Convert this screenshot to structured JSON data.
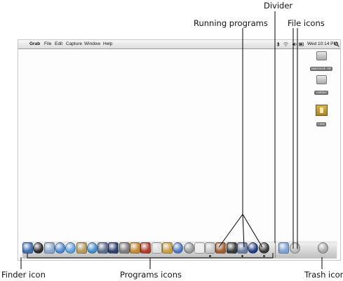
{
  "callouts": {
    "divider": "Divider",
    "running_programs": "Running programs",
    "file_icons": "File icons",
    "finder_icon": "Finder icon",
    "programs_icons": "Programs icons",
    "trash_icon": "Trash icon"
  },
  "menubar": {
    "apple": "",
    "app_name": "Grab",
    "menus": [
      "File",
      "Edit",
      "Capture",
      "Window",
      "Help"
    ],
    "clock": "Wed 10:14 PM"
  },
  "desktop_icons": [
    {
      "label": "Macintosh HD",
      "icon": "hard-drive-icon"
    },
    {
      "label": "Untitled",
      "icon": "hard-drive-icon"
    },
    {
      "label": "Cube",
      "icon": "folder-icon"
    }
  ],
  "dock": {
    "program_icons": [
      {
        "icon": "finder-icon",
        "color": "#3d6fb6"
      },
      {
        "icon": "dashboard-icon",
        "color": "#2b2b2b"
      },
      {
        "icon": "mail-icon",
        "color": "#8aa8cf"
      },
      {
        "icon": "safari-icon",
        "color": "#4a8bd6"
      },
      {
        "icon": "ichat-icon",
        "color": "#5aa0e6"
      },
      {
        "icon": "address-book-icon",
        "color": "#b79a5a"
      },
      {
        "icon": "itunes-icon",
        "color": "#3f8fd2"
      },
      {
        "icon": "iphoto-icon",
        "color": "#5b6f8d"
      },
      {
        "icon": "imovie-icon",
        "color": "#2c3f6f"
      },
      {
        "icon": "idvd-icon",
        "color": "#7d7d7d"
      },
      {
        "icon": "garageband-icon",
        "color": "#c58a2e"
      },
      {
        "icon": "iweb-icon",
        "color": "#b23b2b"
      },
      {
        "icon": "ical-icon",
        "color": "#dedede"
      },
      {
        "icon": "preview-icon",
        "color": "#c9a13f"
      },
      {
        "icon": "quicktime-icon",
        "color": "#4a78c4"
      },
      {
        "icon": "system-preferences-icon",
        "color": "#9a9a9a"
      },
      {
        "icon": "textedit-icon",
        "color": "#ececec"
      },
      {
        "icon": "grab-icon",
        "color": "#c8c8c8"
      },
      {
        "icon": "photo-booth-icon",
        "color": "#a35e2c"
      },
      {
        "icon": "terminal-icon",
        "color": "#3c3c3c"
      },
      {
        "icon": "pen-tool-icon",
        "color": "#6b7fa6"
      },
      {
        "icon": "chess-icon",
        "color": "#1f3d88"
      },
      {
        "icon": "film-reel-icon",
        "color": "#3a3a3a"
      }
    ],
    "running_indices": [
      17,
      20,
      22
    ],
    "file_icons": [
      {
        "icon": "applications-folder-icon",
        "color": "#7aa3d4"
      },
      {
        "icon": "downloads-icon",
        "color": "#b8b8b8"
      }
    ],
    "trash": {
      "icon": "trash-icon",
      "color": "#a8a8a8"
    }
  }
}
